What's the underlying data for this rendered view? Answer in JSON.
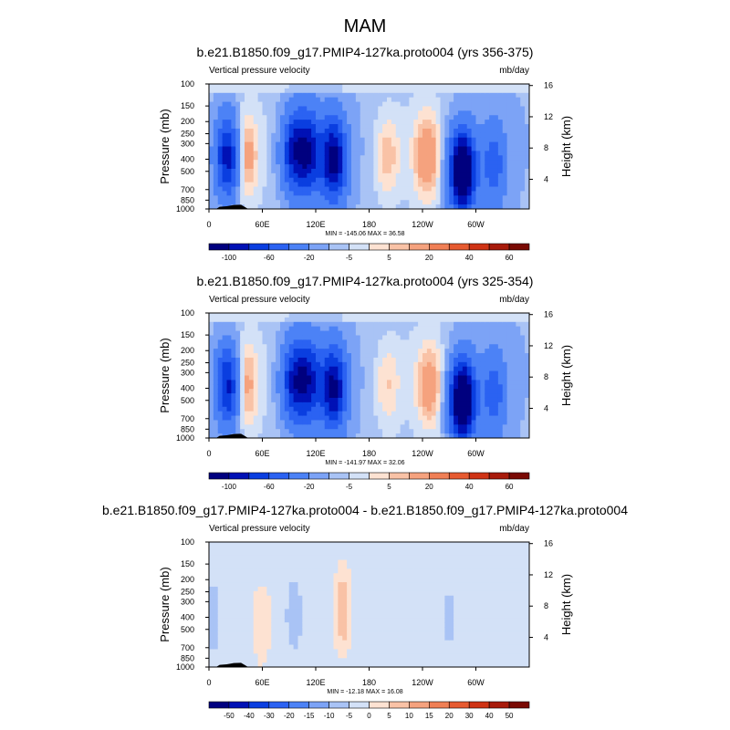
{
  "figure": {
    "title": "MAM"
  },
  "chart_data": [
    {
      "type": "heatmap",
      "title": "b.e21.B1850.f09_g17.PMIP4-127ka.proto004 (yrs 356-375)",
      "left_label": "Vertical pressure velocity",
      "right_label": "mb/day",
      "ylabel": "Pressure (mb)",
      "ylabel_right": "Height (km)",
      "x_ticks": [
        "0",
        "60E",
        "120E",
        "180",
        "120W",
        "60W"
      ],
      "y_ticks": [
        "100",
        "150",
        "200",
        "250",
        "300",
        "400",
        "500",
        "700",
        "850",
        "1000"
      ],
      "height_ticks": [
        "4",
        "8",
        "12",
        "16"
      ],
      "stats": "MIN = -145.06  MAX =  36.58",
      "colorbar_levels": [
        "-100",
        "-60",
        "-20",
        "-5",
        "5",
        "20",
        "40",
        "60"
      ],
      "min": -145.06,
      "max": 36.58,
      "features": [
        {
          "lon": 22,
          "p": 380,
          "value": -90
        },
        {
          "lon": 38,
          "p": 380,
          "value": 30
        },
        {
          "lon": 95,
          "p": 350,
          "value": -70
        },
        {
          "lon": 112,
          "p": 350,
          "value": -80
        },
        {
          "lon": 140,
          "p": 400,
          "value": -100
        },
        {
          "lon": 200,
          "p": 380,
          "value": 15
        },
        {
          "lon": 245,
          "p": 380,
          "value": 25
        },
        {
          "lon": 285,
          "p": 500,
          "value": -140
        },
        {
          "lon": 320,
          "p": 450,
          "value": -40
        }
      ]
    },
    {
      "type": "heatmap",
      "title": "b.e21.B1850.f09_g17.PMIP4-127ka.proto004 (yrs 325-354)",
      "left_label": "Vertical pressure velocity",
      "right_label": "mb/day",
      "ylabel": "Pressure (mb)",
      "ylabel_right": "Height (km)",
      "x_ticks": [
        "0",
        "60E",
        "120E",
        "180",
        "120W",
        "60W"
      ],
      "y_ticks": [
        "100",
        "150",
        "200",
        "250",
        "300",
        "400",
        "500",
        "700",
        "850",
        "1000"
      ],
      "height_ticks": [
        "4",
        "8",
        "12",
        "16"
      ],
      "stats": "MIN = -141.97  MAX =  32.06",
      "colorbar_levels": [
        "-100",
        "-60",
        "-20",
        "-5",
        "5",
        "20",
        "40",
        "60"
      ],
      "min": -141.97,
      "max": 32.06,
      "features": [
        {
          "lon": 22,
          "p": 380,
          "value": -85
        },
        {
          "lon": 38,
          "p": 380,
          "value": 28
        },
        {
          "lon": 95,
          "p": 350,
          "value": -70
        },
        {
          "lon": 112,
          "p": 350,
          "value": -75
        },
        {
          "lon": 140,
          "p": 400,
          "value": -95
        },
        {
          "lon": 200,
          "p": 380,
          "value": 12
        },
        {
          "lon": 248,
          "p": 380,
          "value": 22
        },
        {
          "lon": 285,
          "p": 500,
          "value": -138
        },
        {
          "lon": 320,
          "p": 450,
          "value": -40
        }
      ]
    },
    {
      "type": "heatmap",
      "title": "b.e21.B1850.f09_g17.PMIP4-127ka.proto004 - b.e21.B1850.f09_g17.PMIP4-127ka.proto004",
      "left_label": "Vertical pressure velocity",
      "right_label": "mb/day",
      "ylabel": "Pressure (mb)",
      "ylabel_right": "Height (km)",
      "x_ticks": [
        "0",
        "60E",
        "120E",
        "180",
        "120W",
        "60W"
      ],
      "y_ticks": [
        "100",
        "150",
        "200",
        "250",
        "300",
        "400",
        "500",
        "700",
        "850",
        "1000"
      ],
      "height_ticks": [
        "4",
        "8",
        "12",
        "16"
      ],
      "stats": "MIN = -12.18  MAX =  16.08",
      "colorbar_levels": [
        "-50",
        "-40",
        "-30",
        "-20",
        "-15",
        "-10",
        "-5",
        "0",
        "5",
        "10",
        "15",
        "20",
        "30",
        "40",
        "50"
      ],
      "min": -12.18,
      "max": 16.08,
      "features": [
        {
          "lon": 150,
          "p": 350,
          "value": 14
        },
        {
          "lon": 5,
          "p": 400,
          "value": -6
        },
        {
          "lon": 95,
          "p": 380,
          "value": -6
        },
        {
          "lon": 270,
          "p": 400,
          "value": -5
        },
        {
          "lon": 60,
          "p": 500,
          "value": 3
        }
      ]
    }
  ]
}
